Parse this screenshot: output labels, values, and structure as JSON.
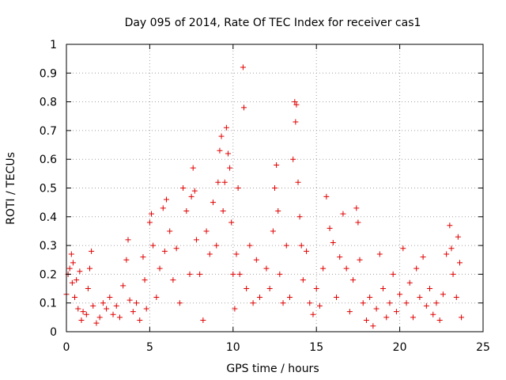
{
  "chart_data": {
    "type": "scatter",
    "title": "Day 095 of 2014, Rate Of TEC Index for receiver cas1",
    "xlabel": "GPS time / hours",
    "ylabel": "ROTI / TECUs",
    "xlim": [
      0,
      25
    ],
    "ylim": [
      0,
      1
    ],
    "x_ticks": [
      0,
      5,
      10,
      15,
      20,
      25
    ],
    "x_tick_labels": [
      "0",
      "5",
      "10",
      "15",
      "20",
      "25"
    ],
    "y_ticks": [
      0,
      0.1,
      0.2,
      0.3,
      0.4,
      0.5,
      0.6,
      0.7,
      0.8,
      0.9,
      1
    ],
    "y_tick_labels": [
      "0",
      "0.1",
      "0.2",
      "0.3",
      "0.4",
      "0.5",
      "0.6",
      "0.7",
      "0.8",
      "0.9",
      "1"
    ],
    "grid": true,
    "marker": "+",
    "color": "#e00000",
    "series": [
      {
        "name": "cas1",
        "points": [
          [
            0.0,
            0.13
          ],
          [
            0.1,
            0.2
          ],
          [
            0.2,
            0.22
          ],
          [
            0.3,
            0.27
          ],
          [
            0.35,
            0.17
          ],
          [
            0.4,
            0.24
          ],
          [
            0.5,
            0.12
          ],
          [
            0.6,
            0.18
          ],
          [
            0.7,
            0.08
          ],
          [
            0.8,
            0.21
          ],
          [
            0.9,
            0.04
          ],
          [
            1.0,
            0.07
          ],
          [
            1.2,
            0.06
          ],
          [
            1.3,
            0.15
          ],
          [
            1.4,
            0.22
          ],
          [
            1.5,
            0.28
          ],
          [
            1.6,
            0.09
          ],
          [
            1.8,
            0.03
          ],
          [
            2.0,
            0.05
          ],
          [
            2.2,
            0.1
          ],
          [
            2.4,
            0.08
          ],
          [
            2.6,
            0.12
          ],
          [
            2.8,
            0.06
          ],
          [
            3.0,
            0.09
          ],
          [
            3.2,
            0.05
          ],
          [
            3.4,
            0.16
          ],
          [
            3.6,
            0.25
          ],
          [
            3.7,
            0.32
          ],
          [
            3.8,
            0.11
          ],
          [
            4.0,
            0.07
          ],
          [
            4.2,
            0.1
          ],
          [
            4.4,
            0.04
          ],
          [
            4.6,
            0.26
          ],
          [
            4.7,
            0.18
          ],
          [
            4.8,
            0.08
          ],
          [
            5.0,
            0.38
          ],
          [
            5.1,
            0.41
          ],
          [
            5.2,
            0.3
          ],
          [
            5.4,
            0.12
          ],
          [
            5.6,
            0.22
          ],
          [
            5.8,
            0.43
          ],
          [
            5.9,
            0.28
          ],
          [
            6.0,
            0.46
          ],
          [
            6.2,
            0.35
          ],
          [
            6.4,
            0.18
          ],
          [
            6.6,
            0.29
          ],
          [
            6.8,
            0.1
          ],
          [
            7.0,
            0.5
          ],
          [
            7.2,
            0.42
          ],
          [
            7.4,
            0.2
          ],
          [
            7.5,
            0.47
          ],
          [
            7.6,
            0.57
          ],
          [
            7.7,
            0.49
          ],
          [
            7.8,
            0.32
          ],
          [
            8.0,
            0.2
          ],
          [
            8.2,
            0.04
          ],
          [
            8.4,
            0.35
          ],
          [
            8.6,
            0.27
          ],
          [
            8.8,
            0.45
          ],
          [
            9.0,
            0.3
          ],
          [
            9.1,
            0.52
          ],
          [
            9.2,
            0.63
          ],
          [
            9.3,
            0.68
          ],
          [
            9.4,
            0.42
          ],
          [
            9.5,
            0.52
          ],
          [
            9.6,
            0.71
          ],
          [
            9.7,
            0.62
          ],
          [
            9.8,
            0.57
          ],
          [
            9.9,
            0.38
          ],
          [
            10.0,
            0.2
          ],
          [
            10.1,
            0.08
          ],
          [
            10.2,
            0.27
          ],
          [
            10.3,
            0.5
          ],
          [
            10.4,
            0.2
          ],
          [
            10.6,
            0.92
          ],
          [
            10.65,
            0.78
          ],
          [
            10.8,
            0.15
          ],
          [
            11.0,
            0.3
          ],
          [
            11.2,
            0.1
          ],
          [
            11.4,
            0.25
          ],
          [
            11.6,
            0.12
          ],
          [
            12.0,
            0.22
          ],
          [
            12.2,
            0.15
          ],
          [
            12.4,
            0.35
          ],
          [
            12.5,
            0.5
          ],
          [
            12.6,
            0.58
          ],
          [
            12.7,
            0.42
          ],
          [
            12.8,
            0.2
          ],
          [
            13.0,
            0.1
          ],
          [
            13.2,
            0.3
          ],
          [
            13.4,
            0.12
          ],
          [
            13.6,
            0.6
          ],
          [
            13.7,
            0.8
          ],
          [
            13.75,
            0.73
          ],
          [
            13.8,
            0.79
          ],
          [
            13.9,
            0.52
          ],
          [
            14.0,
            0.4
          ],
          [
            14.1,
            0.3
          ],
          [
            14.2,
            0.18
          ],
          [
            14.4,
            0.28
          ],
          [
            14.6,
            0.1
          ],
          [
            14.8,
            0.06
          ],
          [
            15.0,
            0.15
          ],
          [
            15.2,
            0.09
          ],
          [
            15.4,
            0.22
          ],
          [
            15.6,
            0.47
          ],
          [
            15.8,
            0.36
          ],
          [
            16.0,
            0.31
          ],
          [
            16.2,
            0.12
          ],
          [
            16.4,
            0.26
          ],
          [
            16.6,
            0.41
          ],
          [
            16.8,
            0.22
          ],
          [
            17.0,
            0.07
          ],
          [
            17.2,
            0.18
          ],
          [
            17.4,
            0.43
          ],
          [
            17.5,
            0.38
          ],
          [
            17.6,
            0.25
          ],
          [
            17.8,
            0.1
          ],
          [
            18.0,
            0.04
          ],
          [
            18.2,
            0.12
          ],
          [
            18.4,
            0.02
          ],
          [
            18.6,
            0.08
          ],
          [
            18.8,
            0.27
          ],
          [
            19.0,
            0.15
          ],
          [
            19.2,
            0.05
          ],
          [
            19.4,
            0.1
          ],
          [
            19.6,
            0.2
          ],
          [
            19.8,
            0.07
          ],
          [
            20.0,
            0.13
          ],
          [
            20.2,
            0.29
          ],
          [
            20.4,
            0.1
          ],
          [
            20.6,
            0.17
          ],
          [
            20.8,
            0.05
          ],
          [
            21.0,
            0.22
          ],
          [
            21.2,
            0.12
          ],
          [
            21.4,
            0.26
          ],
          [
            21.6,
            0.09
          ],
          [
            21.8,
            0.15
          ],
          [
            22.0,
            0.06
          ],
          [
            22.2,
            0.1
          ],
          [
            22.4,
            0.04
          ],
          [
            22.6,
            0.13
          ],
          [
            22.8,
            0.27
          ],
          [
            23.0,
            0.37
          ],
          [
            23.1,
            0.29
          ],
          [
            23.2,
            0.2
          ],
          [
            23.4,
            0.12
          ],
          [
            23.5,
            0.33
          ],
          [
            23.6,
            0.24
          ],
          [
            23.7,
            0.05
          ]
        ]
      }
    ]
  }
}
